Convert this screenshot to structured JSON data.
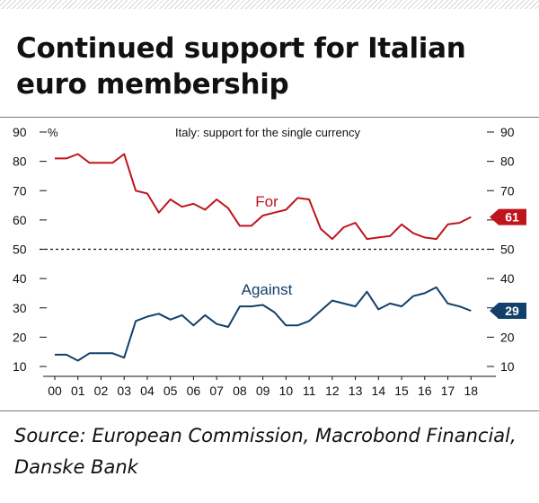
{
  "title": "Continued support for Italian euro membership",
  "source": "Source: European Commission, Macrobond Financial, Danske Bank",
  "chart_data": {
    "type": "line",
    "title": "Italy: support for the single currency",
    "unit": "%",
    "x_tick_labels": [
      "00",
      "01",
      "02",
      "03",
      "04",
      "05",
      "06",
      "07",
      "08",
      "09",
      "10",
      "11",
      "12",
      "13",
      "14",
      "15",
      "16",
      "17",
      "18"
    ],
    "xlim": [
      2000,
      2018.3
    ],
    "ylim": [
      10,
      90
    ],
    "y_ticks": [
      10,
      20,
      30,
      40,
      50,
      60,
      70,
      80,
      90
    ],
    "reference_line": 50,
    "grid": false,
    "series": [
      {
        "name": "For",
        "color": "#c0141c",
        "end_label": "61",
        "x": [
          2000.0,
          2000.5,
          2001.0,
          2001.5,
          2002.0,
          2002.5,
          2003.0,
          2003.5,
          2004.0,
          2004.5,
          2005.0,
          2005.5,
          2006.0,
          2006.5,
          2007.0,
          2007.5,
          2008.0,
          2008.5,
          2009.0,
          2009.5,
          2010.0,
          2010.5,
          2011.0,
          2011.5,
          2012.0,
          2012.5,
          2013.0,
          2013.5,
          2014.0,
          2014.5,
          2015.0,
          2015.5,
          2016.0,
          2016.5,
          2017.0,
          2017.5,
          2018.0
        ],
        "values": [
          81,
          81,
          82.5,
          79.5,
          79.5,
          79.5,
          82.5,
          70,
          69,
          62.5,
          67,
          64.5,
          65.5,
          63.5,
          67,
          64,
          58,
          58,
          61.5,
          62.5,
          63.5,
          67.5,
          67,
          57,
          53.5,
          57.5,
          59,
          53.5,
          54,
          54.5,
          58.5,
          55.5,
          54,
          53.5,
          58.5,
          59,
          61
        ]
      },
      {
        "name": "Against",
        "color": "#12406a",
        "end_label": "29",
        "x": [
          2000.0,
          2000.5,
          2001.0,
          2001.5,
          2002.0,
          2002.5,
          2003.0,
          2003.5,
          2004.0,
          2004.5,
          2005.0,
          2005.5,
          2006.0,
          2006.5,
          2007.0,
          2007.5,
          2008.0,
          2008.5,
          2009.0,
          2009.5,
          2010.0,
          2010.5,
          2011.0,
          2011.5,
          2012.0,
          2012.5,
          2013.0,
          2013.5,
          2014.0,
          2014.5,
          2015.0,
          2015.5,
          2016.0,
          2016.5,
          2017.0,
          2017.5,
          2018.0
        ],
        "values": [
          14,
          14,
          12,
          14.5,
          14.5,
          14.5,
          13,
          25.5,
          27,
          28,
          26,
          27.5,
          24,
          27.5,
          24.5,
          23.5,
          30.5,
          30.5,
          31,
          28.5,
          24,
          24,
          25.5,
          29,
          32.5,
          31.5,
          30.5,
          35.5,
          29.5,
          31.5,
          30.5,
          34,
          35,
          37,
          31.5,
          30.5,
          29
        ]
      }
    ]
  }
}
